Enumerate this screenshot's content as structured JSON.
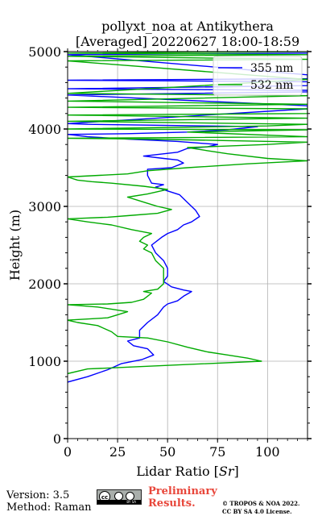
{
  "chart_data": {
    "type": "line",
    "title": "pollyxt_noa at Antikythera",
    "subtitle": "[Averaged] 20220627 18:00-18:59",
    "xlabel": "Lidar Ratio [",
    "xlabel_unit": "Sr",
    "xlabel_close": "]",
    "ylabel": "Height (m)",
    "xlim": [
      0,
      120
    ],
    "ylim": [
      0,
      5000
    ],
    "xticks": [
      "0",
      "25",
      "50",
      "75",
      "100"
    ],
    "yticks": [
      "0",
      "1000",
      "2000",
      "3000",
      "4000",
      "5000"
    ],
    "grid": true,
    "legend_position": "top-right",
    "series": [
      {
        "name": "355 nm",
        "color": "#0000ff",
        "points": [
          [
            0,
            730
          ],
          [
            10,
            800
          ],
          [
            20,
            890
          ],
          [
            27,
            970
          ],
          [
            37,
            1020
          ],
          [
            43,
            1080
          ],
          [
            40,
            1160
          ],
          [
            33,
            1200
          ],
          [
            30,
            1260
          ],
          [
            36,
            1300
          ],
          [
            36,
            1400
          ],
          [
            40,
            1500
          ],
          [
            45,
            1600
          ],
          [
            48,
            1700
          ],
          [
            50,
            1740
          ],
          [
            55,
            1780
          ],
          [
            58,
            1840
          ],
          [
            62,
            1900
          ],
          [
            58,
            1920
          ],
          [
            52,
            1960
          ],
          [
            48,
            2030
          ],
          [
            50,
            2100
          ],
          [
            50,
            2200
          ],
          [
            48,
            2300
          ],
          [
            44,
            2400
          ],
          [
            42,
            2500
          ],
          [
            47,
            2600
          ],
          [
            50,
            2650
          ],
          [
            55,
            2700
          ],
          [
            58,
            2760
          ],
          [
            62,
            2800
          ],
          [
            66,
            2870
          ],
          [
            64,
            2950
          ],
          [
            60,
            3050
          ],
          [
            56,
            3150
          ],
          [
            50,
            3200
          ],
          [
            44,
            3250
          ],
          [
            48,
            3280
          ],
          [
            42,
            3300
          ],
          [
            40,
            3400
          ],
          [
            40,
            3480
          ],
          [
            52,
            3500
          ],
          [
            58,
            3560
          ],
          [
            55,
            3600
          ],
          [
            48,
            3620
          ],
          [
            38,
            3650
          ],
          [
            55,
            3700
          ],
          [
            60,
            3750
          ],
          [
            70,
            3770
          ],
          [
            75,
            3800
          ],
          [
            55,
            3840
          ],
          [
            30,
            3870
          ],
          [
            10,
            3900
          ],
          [
            0,
            3930
          ],
          [
            30,
            3940
          ],
          [
            60,
            3960
          ],
          [
            80,
            3990
          ],
          [
            95,
            4030
          ],
          [
            70,
            4040
          ],
          [
            40,
            4050
          ],
          [
            10,
            4060
          ],
          [
            0,
            4070
          ],
          [
            120,
            4260
          ],
          [
            120,
            4300
          ],
          [
            0,
            4440
          ],
          [
            120,
            4480
          ],
          [
            120,
            4500
          ],
          [
            0,
            4520
          ],
          [
            120,
            4560
          ],
          [
            120,
            4610
          ],
          [
            0,
            4630
          ],
          [
            120,
            4650
          ],
          [
            120,
            4700
          ],
          [
            0,
            4960
          ],
          [
            120,
            4980
          ]
        ]
      },
      {
        "name": "532 nm",
        "color": "#00aa00",
        "points": [
          [
            0,
            840
          ],
          [
            10,
            900
          ],
          [
            97,
            1000
          ],
          [
            90,
            1040
          ],
          [
            80,
            1080
          ],
          [
            70,
            1120
          ],
          [
            60,
            1180
          ],
          [
            50,
            1250
          ],
          [
            40,
            1300
          ],
          [
            25,
            1320
          ],
          [
            22,
            1380
          ],
          [
            15,
            1460
          ],
          [
            5,
            1500
          ],
          [
            0,
            1530
          ],
          [
            20,
            1560
          ],
          [
            25,
            1600
          ],
          [
            30,
            1640
          ],
          [
            15,
            1700
          ],
          [
            0,
            1730
          ],
          [
            20,
            1740
          ],
          [
            32,
            1760
          ],
          [
            38,
            1800
          ],
          [
            40,
            1840
          ],
          [
            42,
            1880
          ],
          [
            38,
            1900
          ],
          [
            45,
            1930
          ],
          [
            48,
            2000
          ],
          [
            48,
            2100
          ],
          [
            48,
            2200
          ],
          [
            44,
            2300
          ],
          [
            42,
            2400
          ],
          [
            38,
            2450
          ],
          [
            40,
            2500
          ],
          [
            36,
            2550
          ],
          [
            38,
            2600
          ],
          [
            42,
            2650
          ],
          [
            32,
            2700
          ],
          [
            22,
            2760
          ],
          [
            10,
            2800
          ],
          [
            0,
            2840
          ],
          [
            20,
            2860
          ],
          [
            30,
            2880
          ],
          [
            45,
            2910
          ],
          [
            52,
            2960
          ],
          [
            45,
            3000
          ],
          [
            40,
            3040
          ],
          [
            35,
            3080
          ],
          [
            30,
            3120
          ],
          [
            40,
            3160
          ],
          [
            50,
            3220
          ],
          [
            38,
            3260
          ],
          [
            22,
            3300
          ],
          [
            12,
            3320
          ],
          [
            5,
            3340
          ],
          [
            0,
            3380
          ],
          [
            30,
            3420
          ],
          [
            40,
            3460
          ],
          [
            60,
            3500
          ],
          [
            90,
            3550
          ],
          [
            120,
            3590
          ],
          [
            100,
            3620
          ],
          [
            80,
            3680
          ],
          [
            70,
            3720
          ],
          [
            60,
            3760
          ],
          [
            100,
            3800
          ],
          [
            120,
            3830
          ],
          [
            80,
            3850
          ],
          [
            40,
            3870
          ],
          [
            0,
            3880
          ],
          [
            120,
            3900
          ],
          [
            60,
            3960
          ],
          [
            120,
            3990
          ],
          [
            0,
            4000
          ],
          [
            100,
            4040
          ],
          [
            120,
            4060
          ],
          [
            0,
            4100
          ],
          [
            120,
            4140
          ],
          [
            0,
            4180
          ],
          [
            120,
            4200
          ],
          [
            120,
            4260
          ],
          [
            0,
            4280
          ],
          [
            120,
            4320
          ],
          [
            0,
            4360
          ],
          [
            120,
            4430
          ],
          [
            0,
            4460
          ],
          [
            120,
            4640
          ],
          [
            0,
            4880
          ],
          [
            120,
            4900
          ],
          [
            0,
            4940
          ],
          [
            120,
            4960
          ],
          [
            0,
            4980
          ],
          [
            120,
            5000
          ]
        ]
      }
    ]
  },
  "footer": {
    "version": "Version: 3.5",
    "method": "Method: Raman",
    "license_badge": "BY SA",
    "preliminary_line1": "Preliminary",
    "preliminary_line2": "Results.",
    "copyright_line1": "© TROPOS & NOA 2022.",
    "copyright_line2": "CC BY SA 4.0 License."
  }
}
